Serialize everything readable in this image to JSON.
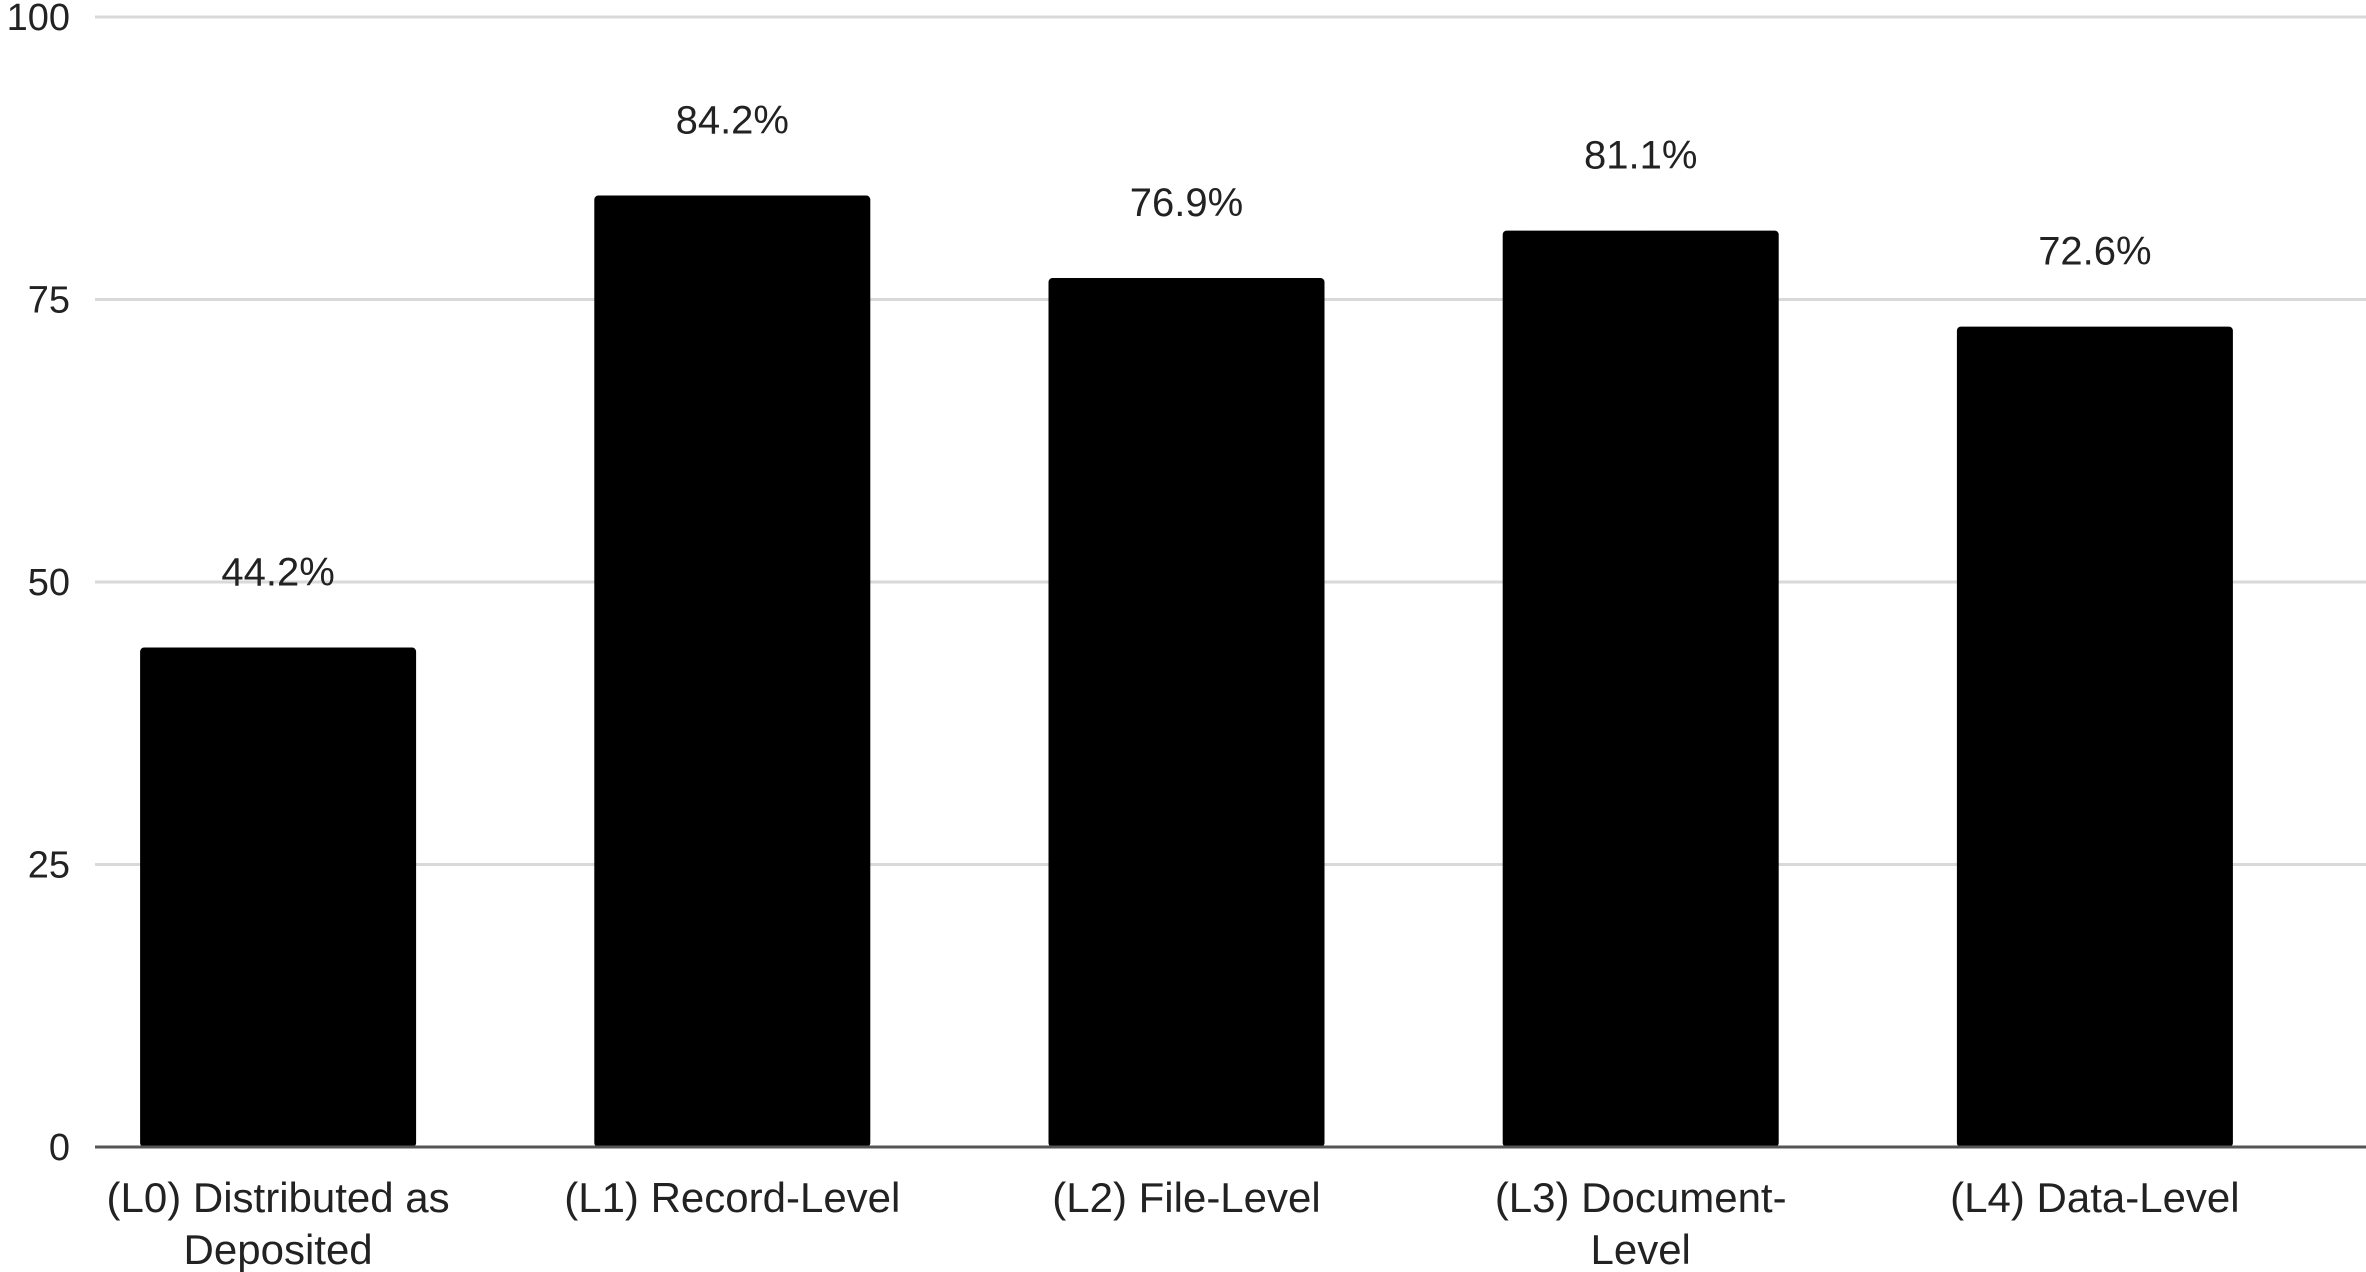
{
  "chart_data": {
    "type": "bar",
    "categories": [
      [
        "(L0) Distributed as",
        "Deposited"
      ],
      [
        "(L1) Record-Level"
      ],
      [
        "(L2) File-Level"
      ],
      [
        "(L3) Document-",
        "Level"
      ],
      [
        "(L4) Data-Level"
      ]
    ],
    "values": [
      44.2,
      84.2,
      76.9,
      81.1,
      72.6
    ],
    "value_labels": [
      "44.2%",
      "84.2%",
      "76.9%",
      "81.1%",
      "72.6%"
    ],
    "yticks": [
      "0",
      "25",
      "50",
      "75",
      "100"
    ],
    "ylim": [
      0,
      100
    ],
    "grid": true,
    "colors": {
      "bar": "#000000",
      "grid": "#d9d9d9",
      "axis": "#555555"
    }
  }
}
